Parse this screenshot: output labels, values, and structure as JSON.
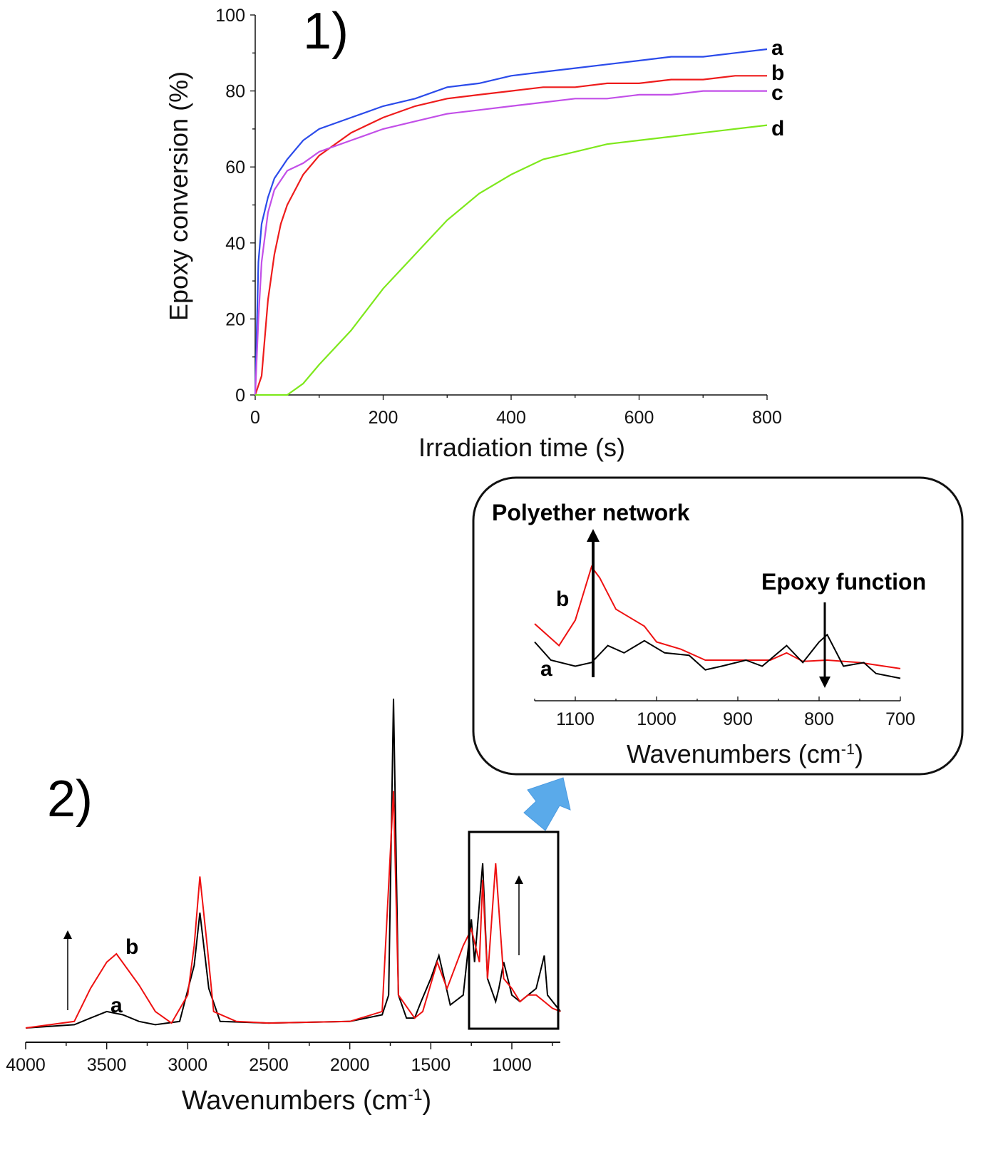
{
  "chart_data": [
    {
      "type": "line",
      "panel_label": "1)",
      "xlabel": "Irradiation time (s)",
      "ylabel": "Epoxy conversion (%)",
      "xlim": [
        0,
        800
      ],
      "ylim": [
        0,
        100
      ],
      "xticks": [
        0,
        200,
        400,
        600,
        800
      ],
      "yticks": [
        0,
        20,
        40,
        60,
        80,
        100
      ],
      "grid": false,
      "series": [
        {
          "name": "a",
          "color": "#2b4bea",
          "x": [
            0,
            5,
            10,
            20,
            30,
            50,
            75,
            100,
            150,
            200,
            250,
            300,
            350,
            400,
            450,
            500,
            550,
            600,
            650,
            700,
            750,
            800
          ],
          "y": [
            0,
            35,
            45,
            52,
            57,
            62,
            67,
            70,
            73,
            76,
            78,
            81,
            82,
            84,
            85,
            86,
            87,
            88,
            89,
            89,
            90,
            91
          ]
        },
        {
          "name": "b",
          "color": "#ee1c1c",
          "x": [
            0,
            10,
            20,
            30,
            40,
            50,
            75,
            100,
            150,
            200,
            250,
            300,
            350,
            400,
            450,
            500,
            550,
            600,
            650,
            700,
            750,
            800
          ],
          "y": [
            0,
            5,
            25,
            37,
            45,
            50,
            58,
            63,
            69,
            73,
            76,
            78,
            79,
            80,
            81,
            81,
            82,
            82,
            83,
            83,
            84,
            84
          ]
        },
        {
          "name": "c",
          "color": "#c24fe8",
          "x": [
            0,
            5,
            10,
            20,
            30,
            50,
            75,
            100,
            150,
            200,
            250,
            300,
            350,
            400,
            450,
            500,
            550,
            600,
            650,
            700,
            750,
            800
          ],
          "y": [
            0,
            20,
            35,
            48,
            54,
            59,
            61,
            64,
            67,
            70,
            72,
            74,
            75,
            76,
            77,
            78,
            78,
            79,
            79,
            80,
            80,
            80
          ]
        },
        {
          "name": "d",
          "color": "#7ee81c",
          "x": [
            0,
            50,
            75,
            100,
            150,
            200,
            250,
            300,
            350,
            400,
            450,
            500,
            550,
            600,
            650,
            700,
            750,
            800
          ],
          "y": [
            0,
            0,
            3,
            8,
            17,
            28,
            37,
            46,
            53,
            58,
            62,
            64,
            66,
            67,
            68,
            69,
            70,
            71
          ]
        }
      ]
    },
    {
      "type": "line",
      "panel_label": "2)",
      "xlabel": {
        "main": "Wavenumbers (cm",
        "sup": "-1",
        "close": ")"
      },
      "xlim": [
        4000,
        700
      ],
      "xticks": [
        4000,
        3500,
        3000,
        2500,
        2000,
        1500,
        1000
      ],
      "grid": false,
      "series": [
        {
          "name": "a",
          "color": "#000000",
          "x": [
            4000,
            3700,
            3600,
            3500,
            3400,
            3300,
            3200,
            3050,
            2960,
            2925,
            2870,
            2800,
            2500,
            2000,
            1800,
            1760,
            1730,
            1700,
            1650,
            1600,
            1560,
            1500,
            1450,
            1380,
            1300,
            1250,
            1230,
            1180,
            1150,
            1100,
            1080,
            1050,
            1000,
            950,
            900,
            850,
            800,
            780,
            700
          ],
          "y": [
            0,
            0.01,
            0.03,
            0.05,
            0.04,
            0.02,
            0.01,
            0.02,
            0.19,
            0.35,
            0.12,
            0.02,
            0.015,
            0.02,
            0.04,
            0.1,
            1.0,
            0.1,
            0.03,
            0.03,
            0.08,
            0.15,
            0.22,
            0.07,
            0.1,
            0.33,
            0.2,
            0.5,
            0.15,
            0.08,
            0.12,
            0.2,
            0.1,
            0.08,
            0.1,
            0.12,
            0.22,
            0.1,
            0.05
          ]
        },
        {
          "name": "b",
          "color": "#ee1111",
          "x": [
            4000,
            3700,
            3600,
            3500,
            3440,
            3300,
            3200,
            3100,
            3000,
            2960,
            2925,
            2880,
            2840,
            2700,
            2500,
            2000,
            1800,
            1730,
            1700,
            1600,
            1550,
            1460,
            1400,
            1300,
            1250,
            1200,
            1180,
            1150,
            1100,
            1050,
            1000,
            950,
            900,
            850,
            800,
            750,
            700
          ],
          "y": [
            0,
            0.02,
            0.12,
            0.2,
            0.225,
            0.13,
            0.05,
            0.015,
            0.1,
            0.25,
            0.46,
            0.25,
            0.05,
            0.02,
            0.015,
            0.02,
            0.05,
            0.72,
            0.1,
            0.03,
            0.05,
            0.2,
            0.12,
            0.25,
            0.3,
            0.2,
            0.45,
            0.15,
            0.5,
            0.15,
            0.12,
            0.08,
            0.1,
            0.1,
            0.08,
            0.06,
            0.05
          ]
        }
      ],
      "annotations": {
        "label_a": "a",
        "label_b": "b"
      }
    },
    {
      "type": "line",
      "inset": true,
      "xlabel": {
        "main": "Wavenumbers (cm",
        "sup": "-1",
        "close": ")"
      },
      "xlim": [
        1150,
        700
      ],
      "xticks": [
        1100,
        1000,
        900,
        800,
        700
      ],
      "grid": false,
      "series": [
        {
          "name": "b",
          "color": "#ee1111",
          "x": [
            1150,
            1120,
            1100,
            1080,
            1070,
            1050,
            1030,
            1015,
            1000,
            970,
            940,
            900,
            860,
            840,
            820,
            790,
            750,
            700
          ],
          "y": [
            0.5,
            0.32,
            0.53,
            0.97,
            0.88,
            0.62,
            0.54,
            0.48,
            0.35,
            0.29,
            0.2,
            0.2,
            0.2,
            0.26,
            0.19,
            0.2,
            0.18,
            0.13
          ]
        },
        {
          "name": "a",
          "color": "#000000",
          "x": [
            1150,
            1130,
            1100,
            1080,
            1060,
            1040,
            1015,
            990,
            960,
            940,
            920,
            890,
            870,
            840,
            820,
            800,
            790,
            770,
            745,
            730,
            700
          ],
          "y": [
            0.35,
            0.2,
            0.15,
            0.18,
            0.32,
            0.26,
            0.36,
            0.26,
            0.24,
            0.12,
            0.15,
            0.2,
            0.15,
            0.32,
            0.18,
            0.35,
            0.41,
            0.15,
            0.18,
            0.09,
            0.05
          ]
        }
      ],
      "annotations": {
        "polyether": "Polyether network",
        "epoxy": "Epoxy function",
        "label_a": "a",
        "label_b": "b"
      }
    }
  ],
  "colors": {
    "zoom_arrow": "#5aaaea"
  }
}
